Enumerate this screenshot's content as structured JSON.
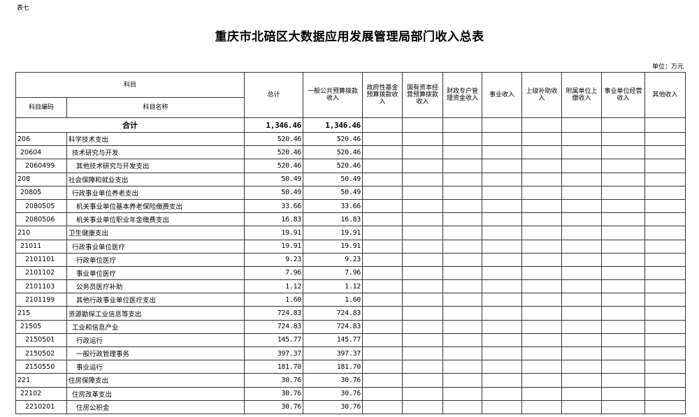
{
  "table_tag": "表七",
  "title": "重庆市北碚区大数据应用发展管理局部门收入总表",
  "unit": "单位：万元",
  "headers": {
    "subject": "科目",
    "code": "科目编码",
    "name": "科目名称",
    "total": "总计",
    "columns": [
      "一般公共预算拨款收入",
      "政府性基金预算拨款收入",
      "国有资本经营预算拨款收入",
      "财政专户管理资金收入",
      "事业收入",
      "上级补助收入",
      "附属单位上缴收入",
      "事业单位经营收入",
      "其他收入"
    ]
  },
  "total_row": {
    "label": "合计",
    "total": "1,346.46",
    "general": "1,346.46"
  },
  "rows": [
    {
      "code": "206",
      "name": "科学技术支出",
      "total": "520.46",
      "general": "520.46",
      "level": 0
    },
    {
      "code": "20604",
      "name": "技术研究与开发",
      "total": "520.46",
      "general": "520.46",
      "level": 1
    },
    {
      "code": "2060499",
      "name": "其他技术研究与开发支出",
      "total": "520.46",
      "general": "520.46",
      "level": 2
    },
    {
      "code": "208",
      "name": "社会保障和就业支出",
      "total": "50.49",
      "general": "50.49",
      "level": 0
    },
    {
      "code": "20805",
      "name": "行政事业单位养老支出",
      "total": "50.49",
      "general": "50.49",
      "level": 1
    },
    {
      "code": "2080505",
      "name": "机关事业单位基本养老保险缴费支出",
      "total": "33.66",
      "general": "33.66",
      "level": 2
    },
    {
      "code": "2080506",
      "name": "机关事业单位职业年金缴费支出",
      "total": "16.83",
      "general": "16.83",
      "level": 2
    },
    {
      "code": "210",
      "name": "卫生健康支出",
      "total": "19.91",
      "general": "19.91",
      "level": 0
    },
    {
      "code": "21011",
      "name": "行政事业单位医疗",
      "total": "19.91",
      "general": "19.91",
      "level": 1
    },
    {
      "code": "2101101",
      "name": "行政单位医疗",
      "total": "9.23",
      "general": "9.23",
      "level": 2
    },
    {
      "code": "2101102",
      "name": "事业单位医疗",
      "total": "7.96",
      "general": "7.96",
      "level": 2
    },
    {
      "code": "2101103",
      "name": "公务员医疗补助",
      "total": "1.12",
      "general": "1.12",
      "level": 2
    },
    {
      "code": "2101199",
      "name": "其他行政事业单位医疗支出",
      "total": "1.60",
      "general": "1.60",
      "level": 2
    },
    {
      "code": "215",
      "name": "资源勘探工业信息等支出",
      "total": "724.83",
      "general": "724.83",
      "level": 0
    },
    {
      "code": "21505",
      "name": "工业和信息产业",
      "total": "724.83",
      "general": "724.83",
      "level": 1
    },
    {
      "code": "2150501",
      "name": "行政运行",
      "total": "145.77",
      "general": "145.77",
      "level": 2
    },
    {
      "code": "2150502",
      "name": "一般行政管理事务",
      "total": "397.37",
      "general": "397.37",
      "level": 2
    },
    {
      "code": "2150550",
      "name": "事业运行",
      "total": "181.70",
      "general": "181.70",
      "level": 2
    },
    {
      "code": "221",
      "name": "住房保障支出",
      "total": "30.76",
      "general": "30.76",
      "level": 0
    },
    {
      "code": "22102",
      "name": "住房改革支出",
      "total": "30.76",
      "general": "30.76",
      "level": 1
    },
    {
      "code": "2210201",
      "name": "住房公积金",
      "total": "30.76",
      "general": "30.76",
      "level": 2
    }
  ]
}
